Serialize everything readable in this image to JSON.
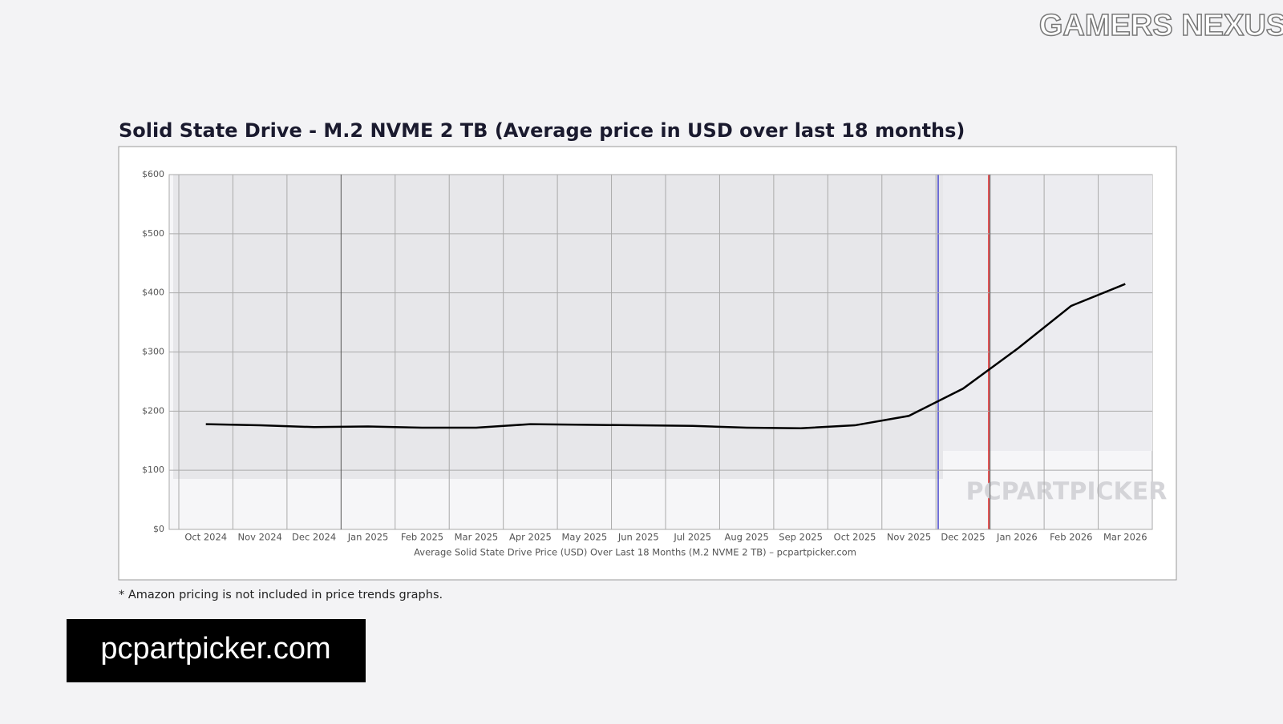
{
  "brand": "GAMERS NEXUS",
  "chart_data": {
    "type": "line",
    "title": "Solid State Drive - M.2 NVME 2 TB (Average price in USD over last 18 months)",
    "x_label": "Average Solid State Drive Price (USD) Over Last 18 Months (M.2 NVME 2 TB) – pcpartpicker.com",
    "watermark": "PCPARTPICKER",
    "categories": [
      "Oct 2024",
      "Nov 2024",
      "Dec 2024",
      "Jan 2025",
      "Feb 2025",
      "Mar 2025",
      "Apr 2025",
      "May 2025",
      "Jun 2025",
      "Jul 2025",
      "Aug 2025",
      "Sep 2025",
      "Oct 2025",
      "Nov 2025",
      "Dec 2025",
      "Jan 2026",
      "Feb 2026",
      "Mar 2026"
    ],
    "values": [
      178,
      176,
      173,
      174,
      172,
      172,
      178,
      177,
      176,
      175,
      172,
      171,
      176,
      192,
      238,
      305,
      378,
      415
    ],
    "color": "#000000",
    "ylim": [
      0,
      600
    ],
    "yticks": [
      {
        "value": 0,
        "label": "$0"
      },
      {
        "value": 100,
        "label": "$100"
      },
      {
        "value": 200,
        "label": "$200"
      },
      {
        "value": 300,
        "label": "$300"
      },
      {
        "value": 400,
        "label": "$400"
      },
      {
        "value": 500,
        "label": "$500"
      },
      {
        "value": 600,
        "label": "$600"
      }
    ],
    "grid": true
  },
  "footnote": "* Amazon pricing is not included in price trends graphs.",
  "source_badge": "pcpartpicker.com"
}
